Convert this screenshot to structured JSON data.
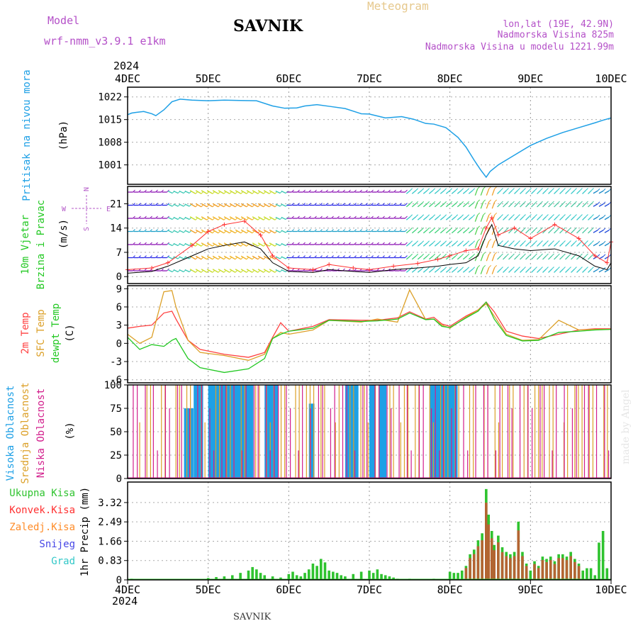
{
  "header": {
    "model_label": "Model",
    "model_name": "wrf-nmm_v3.9.1  e1km",
    "title": "SAVNIK",
    "meteogram": "Meteogram",
    "lonlat": "lon,lat (19E, 42.9N)",
    "altitude": "Nadmorska Visina 825m",
    "model_altitude": "Nadmorska Visina u modelu 1221.99m",
    "year_top": "2024",
    "year_bottom": "2024",
    "footer": "SAVNIK",
    "watermark": "made by Angel"
  },
  "colors": {
    "pressure": "#1ea0e6",
    "temp": "#ff4040",
    "sfc": "#dca028",
    "dewpt": "#22c822",
    "wind_label": "#22c822",
    "rain_total": "#2fc32f",
    "rain_convective": "#ff3030",
    "rain_frozen": "#ff8c28",
    "snow": "#4646e6",
    "hail": "#32c8c8",
    "high_cloud": "#1ea0e6",
    "mid_cloud": "#dca028",
    "low_cloud": "#d21e8c",
    "compass": "#b45ac8",
    "purple_text": "#b450c8",
    "gold_text": "#e6c88c"
  },
  "chart_data": [
    {
      "type": "line",
      "id": "pressure",
      "ylabel_1": "Pritisak na nivou mora",
      "ylabel_2": "(hPa)",
      "yticks": [
        "1022",
        "1015",
        "1008",
        "1001"
      ],
      "ylim": [
        995,
        1025
      ],
      "x_days": [
        0,
        0.05,
        0.1,
        0.2,
        0.3,
        0.35,
        0.45,
        0.55,
        0.65,
        0.8,
        1.0,
        1.2,
        1.4,
        1.6,
        1.8,
        1.95,
        2.1,
        2.2,
        2.35,
        2.5,
        2.7,
        2.9,
        3.0,
        3.2,
        3.4,
        3.55,
        3.7,
        3.8,
        3.95,
        4.1,
        4.2,
        4.3,
        4.38,
        4.45,
        4.5,
        4.6,
        4.8,
        5.0,
        5.2,
        5.4,
        5.6,
        5.8,
        5.9,
        6.0
      ],
      "values": [
        1016.5,
        1017,
        1017.2,
        1017.5,
        1016.8,
        1016.2,
        1018,
        1020.5,
        1021.3,
        1021,
        1020.8,
        1021,
        1020.9,
        1020.8,
        1019.2,
        1018.5,
        1018.6,
        1019.2,
        1019.6,
        1019.1,
        1018.4,
        1016.8,
        1016.7,
        1015.5,
        1015.9,
        1015.1,
        1013.8,
        1013.6,
        1012.5,
        1009.5,
        1006.5,
        1002.5,
        999.5,
        997.2,
        999,
        1001,
        1004,
        1007,
        1009.2,
        1011,
        1012.5,
        1014,
        1014.8,
        1015.5
      ],
      "xticks": [
        "4DEC",
        "5DEC",
        "6DEC",
        "7DEC",
        "8DEC",
        "9DEC",
        "10DEC"
      ]
    },
    {
      "type": "line",
      "id": "wind",
      "ylabel_1": "10m Vjetar",
      "ylabel_2": "Brzina i Pravac",
      "ylabel_3": "(m/s)",
      "compass": {
        "n": "N",
        "s": "S",
        "e": "E",
        "w": "W"
      },
      "yticks": [
        "21",
        "14",
        "7",
        "0"
      ],
      "ylim": [
        -2,
        26
      ],
      "x_days": [
        0,
        0.3,
        0.5,
        0.8,
        1.0,
        1.2,
        1.45,
        1.65,
        1.8,
        2.0,
        2.3,
        2.5,
        2.8,
        3.0,
        3.3,
        3.6,
        3.85,
        4.0,
        4.2,
        4.35,
        4.45,
        4.52,
        4.6,
        4.8,
        5.0,
        5.3,
        5.6,
        5.8,
        5.95,
        6.0
      ],
      "speed": [
        1,
        1.5,
        3,
        6,
        8,
        9,
        10,
        8,
        4,
        1.5,
        1.2,
        2,
        1.5,
        1.2,
        2,
        2.5,
        3,
        3.5,
        4,
        6,
        12,
        15,
        9,
        8,
        7.5,
        8,
        6,
        3,
        2,
        4
      ],
      "gust": [
        2,
        2.5,
        4,
        9,
        13,
        15,
        16,
        12,
        6,
        2.5,
        2,
        3.5,
        2.5,
        2,
        3,
        3.8,
        5,
        6,
        7.5,
        8,
        14,
        17,
        12,
        14,
        11,
        15,
        11,
        6,
        4,
        10
      ]
    },
    {
      "type": "line",
      "id": "temperature",
      "ylabel_1": "2m Temp",
      "ylabel_2": "SFC Temp",
      "ylabel_3": "dewpt Temp",
      "ylabel_4": "(C)",
      "yticks": [
        "9",
        "6",
        "3",
        "0",
        "-3",
        "-6"
      ],
      "ylim": [
        -6.5,
        9.5
      ],
      "series": [
        {
          "name": "2m Temp",
          "x_days": [
            0,
            0.15,
            0.3,
            0.45,
            0.55,
            0.6,
            0.75,
            0.9,
            1.2,
            1.5,
            1.7,
            1.8,
            1.9,
            2.0,
            2.3,
            2.5,
            2.9,
            3.1,
            3.35,
            3.5,
            3.7,
            3.8,
            3.9,
            4.0,
            4.2,
            4.35,
            4.45,
            4.55,
            4.7,
            4.9,
            5.1,
            5.35,
            5.6,
            5.8,
            6.0
          ],
          "values": [
            2.5,
            2.8,
            3.0,
            5.0,
            5.3,
            4.0,
            0.5,
            -1.0,
            -1.8,
            -2.3,
            -1.5,
            1.0,
            3.4,
            2.0,
            2.8,
            3.9,
            3.8,
            3.8,
            4.2,
            5.2,
            4.0,
            4.3,
            3.2,
            2.8,
            4.5,
            5.5,
            6.8,
            5.2,
            2.0,
            1.2,
            0.8,
            1.5,
            2.2,
            2.4,
            2.4
          ]
        },
        {
          "name": "SFC Temp",
          "x_days": [
            0,
            0.15,
            0.3,
            0.45,
            0.55,
            0.6,
            0.75,
            0.9,
            1.2,
            1.5,
            1.7,
            1.8,
            1.9,
            2.0,
            2.3,
            2.5,
            2.9,
            3.1,
            3.35,
            3.5,
            3.7,
            3.8,
            3.9,
            4.0,
            4.2,
            4.35,
            4.45,
            4.55,
            4.7,
            4.9,
            5.1,
            5.35,
            5.6,
            5.8,
            6.0
          ],
          "values": [
            1.5,
            0.0,
            1.0,
            8.5,
            8.7,
            6.0,
            0.5,
            -1.5,
            -2.0,
            -2.8,
            -1.8,
            0.8,
            1.8,
            1.5,
            2.2,
            3.8,
            3.5,
            4.0,
            3.5,
            8.8,
            3.9,
            4.0,
            3.0,
            2.5,
            4.3,
            5.5,
            6.5,
            4.5,
            1.5,
            0.5,
            0.6,
            3.8,
            2.2,
            2.3,
            2.3
          ]
        },
        {
          "name": "dewpt Temp",
          "x_days": [
            0,
            0.15,
            0.3,
            0.45,
            0.55,
            0.6,
            0.75,
            0.9,
            1.2,
            1.5,
            1.7,
            1.8,
            1.9,
            2.0,
            2.3,
            2.5,
            2.9,
            3.1,
            3.35,
            3.5,
            3.7,
            3.8,
            3.9,
            4.0,
            4.2,
            4.35,
            4.45,
            4.55,
            4.7,
            4.9,
            5.1,
            5.35,
            5.6,
            5.8,
            6.0
          ],
          "values": [
            1.0,
            -1.0,
            -0.2,
            -0.5,
            0.5,
            0.8,
            -2.5,
            -4.0,
            -4.8,
            -4.2,
            -2.5,
            0.8,
            1.5,
            2.0,
            2.5,
            3.8,
            3.6,
            3.7,
            4.0,
            5.0,
            3.9,
            4.0,
            2.8,
            2.6,
            4.2,
            5.3,
            6.8,
            4.0,
            1.3,
            0.4,
            0.5,
            1.8,
            2.0,
            2.2,
            2.3
          ]
        }
      ]
    },
    {
      "type": "bar",
      "id": "clouds",
      "ylabel_1": "Visoka Oblacnost",
      "ylabel_2": "Srednja Oblacnost",
      "ylabel_3": "Niska Oblacnost",
      "ylabel_4": "(%)",
      "yticks": [
        "100",
        "75",
        "50",
        "25",
        "0"
      ],
      "ylim": [
        0,
        100
      ],
      "high_segments": [
        [
          0.7,
          0.8,
          75
        ],
        [
          0.82,
          0.92,
          100
        ],
        [
          1.0,
          1.55,
          100
        ],
        [
          1.7,
          1.85,
          100
        ],
        [
          2.25,
          2.3,
          80
        ],
        [
          2.7,
          2.85,
          100
        ],
        [
          3.0,
          3.05,
          100
        ],
        [
          3.12,
          3.2,
          100
        ],
        [
          3.75,
          4.08,
          100
        ]
      ],
      "mid_range": [
        0.15,
        6.0
      ],
      "low_range": [
        0.0,
        6.0
      ]
    },
    {
      "type": "bar",
      "id": "precip",
      "ylabel_1": "1hr Precip (mm)",
      "legend": [
        "Ukupna Kisa",
        "Konvek.Kisa",
        "Zaledj.Kisa",
        "Snijeg",
        "Grad"
      ],
      "yticks": [
        "3.32",
        "2.49",
        "1.66",
        "0.83",
        "0"
      ],
      "ylim": [
        0,
        4.2
      ],
      "x_days": [
        0.05,
        0.1,
        0.3,
        0.5,
        0.7,
        0.9,
        1.0,
        1.1,
        1.2,
        1.3,
        1.4,
        1.5,
        1.55,
        1.6,
        1.65,
        1.7,
        1.8,
        1.9,
        2.0,
        2.05,
        2.1,
        2.15,
        2.2,
        2.25,
        2.3,
        2.35,
        2.4,
        2.45,
        2.5,
        2.55,
        2.6,
        2.65,
        2.7,
        2.8,
        2.9,
        3.0,
        3.05,
        3.1,
        3.15,
        3.2,
        3.25,
        3.3,
        3.35,
        3.5,
        3.8,
        4.0,
        4.05,
        4.1,
        4.15,
        4.2,
        4.25,
        4.3,
        4.35,
        4.4,
        4.45,
        4.48,
        4.52,
        4.55,
        4.6,
        4.65,
        4.7,
        4.75,
        4.8,
        4.85,
        4.9,
        4.95,
        5.0,
        5.05,
        5.1,
        5.15,
        5.2,
        5.25,
        5.3,
        5.35,
        5.4,
        5.45,
        5.5,
        5.55,
        5.6,
        5.65,
        5.7,
        5.75,
        5.8,
        5.85,
        5.9,
        5.95
      ],
      "values": [
        0.05,
        0.03,
        0.02,
        0.02,
        0.03,
        0.02,
        0.08,
        0.12,
        0.15,
        0.2,
        0.3,
        0.4,
        0.55,
        0.45,
        0.3,
        0.2,
        0.15,
        0.1,
        0.25,
        0.35,
        0.2,
        0.15,
        0.3,
        0.45,
        0.7,
        0.6,
        0.9,
        0.75,
        0.4,
        0.35,
        0.3,
        0.2,
        0.15,
        0.25,
        0.35,
        0.4,
        0.3,
        0.45,
        0.25,
        0.2,
        0.15,
        0.1,
        0.05,
        0.05,
        0.05,
        0.35,
        0.3,
        0.3,
        0.4,
        0.6,
        1.1,
        1.3,
        1.7,
        2.0,
        3.9,
        2.8,
        2.1,
        1.5,
        1.9,
        1.4,
        1.2,
        1.1,
        1.2,
        2.5,
        1.2,
        0.7,
        0.4,
        0.8,
        0.6,
        1.0,
        0.9,
        1.0,
        0.8,
        1.1,
        1.1,
        1.0,
        1.2,
        0.9,
        0.7,
        0.4,
        0.5,
        0.5,
        0.2,
        1.6,
        2.1,
        0.5
      ]
    }
  ]
}
